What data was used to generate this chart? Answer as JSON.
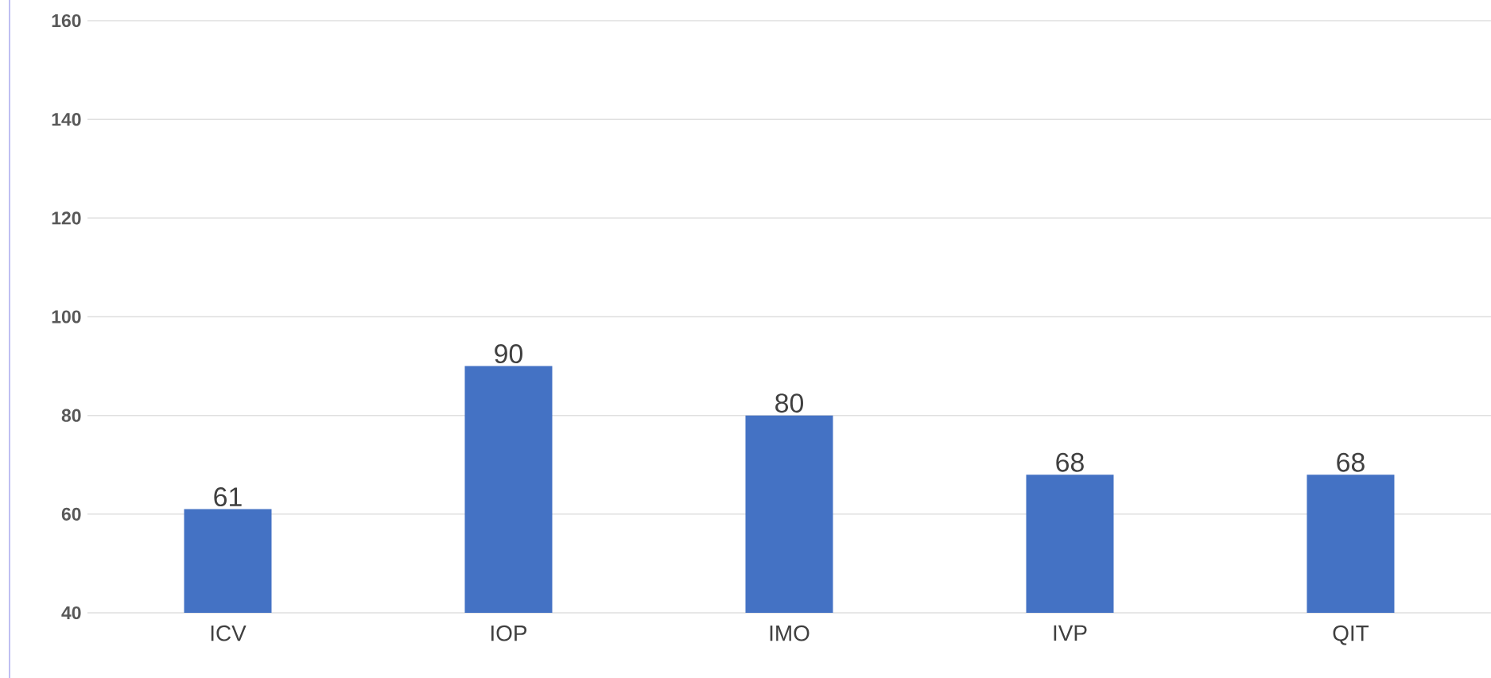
{
  "chart_data": {
    "type": "bar",
    "categories": [
      "ICV",
      "IOP",
      "IMO",
      "IVP",
      "QIT"
    ],
    "values": [
      61,
      90,
      80,
      68,
      68
    ],
    "color": "#4472c4",
    "ylim": [
      40,
      160
    ],
    "yticks": [
      40,
      60,
      80,
      100,
      120,
      140,
      160
    ],
    "grid": "y",
    "data_labels": true
  }
}
